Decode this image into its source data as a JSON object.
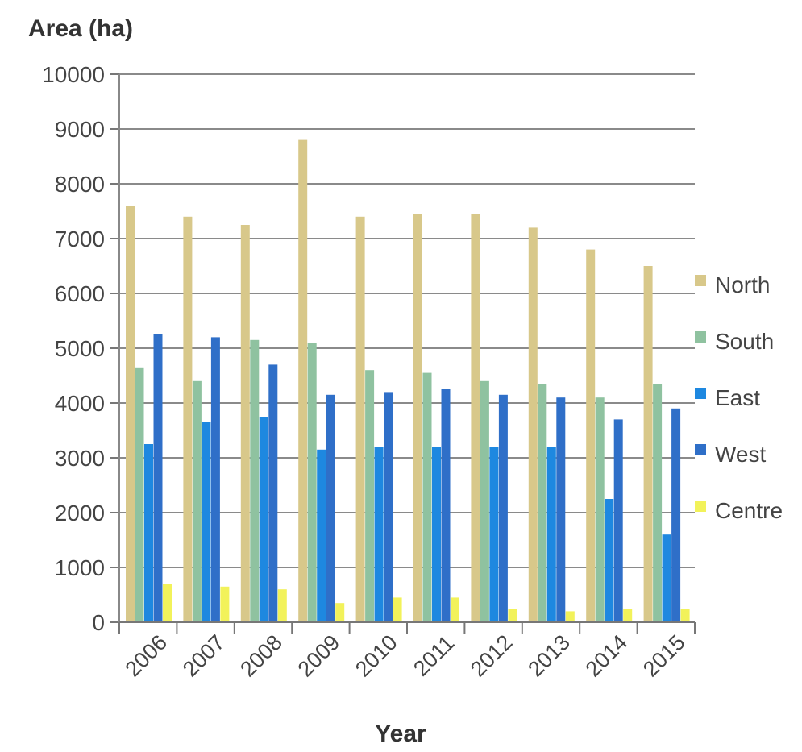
{
  "chart_data": {
    "type": "bar",
    "ylabel": "Area (ha)",
    "xlabel": "Year",
    "categories": [
      "2006",
      "2007",
      "2008",
      "2009",
      "2010",
      "2011",
      "2012",
      "2013",
      "2014",
      "2015"
    ],
    "ylim": [
      0,
      10000
    ],
    "yticks": [
      0,
      1000,
      2000,
      3000,
      4000,
      5000,
      6000,
      7000,
      8000,
      9000,
      10000
    ],
    "grid": true,
    "legend_position": "right",
    "series": [
      {
        "name": "North",
        "color": "#d8c88a",
        "values": [
          7600,
          7400,
          7250,
          8800,
          7400,
          7450,
          7450,
          7200,
          6800,
          6500
        ]
      },
      {
        "name": "South",
        "color": "#8fc2a0",
        "values": [
          4650,
          4400,
          5150,
          5100,
          4600,
          4550,
          4400,
          4350,
          4100,
          4350
        ]
      },
      {
        "name": "East",
        "color": "#1e88e0",
        "values": [
          3250,
          3650,
          3750,
          3150,
          3200,
          3200,
          3200,
          3200,
          2250,
          1600
        ]
      },
      {
        "name": "West",
        "color": "#2f6fc8",
        "values": [
          5250,
          5200,
          4700,
          4150,
          4200,
          4250,
          4150,
          4100,
          3700,
          3900
        ]
      },
      {
        "name": "Centre",
        "color": "#f2f25a",
        "values": [
          700,
          650,
          600,
          350,
          450,
          450,
          250,
          200,
          250,
          250
        ]
      }
    ]
  }
}
